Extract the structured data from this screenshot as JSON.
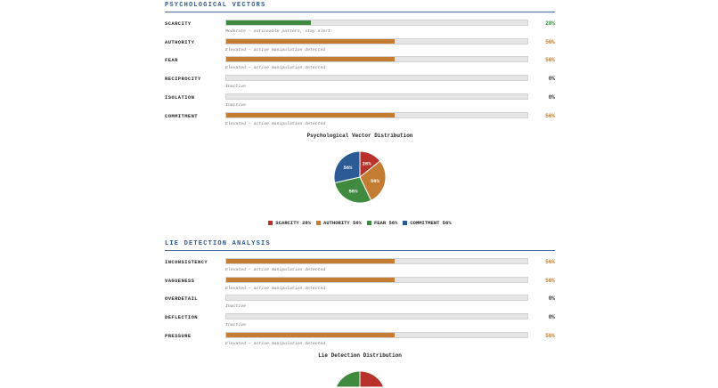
{
  "sections": [
    {
      "title": "PSYCHOLOGICAL VECTORS",
      "chart_title": "Psychological Vector Distribution",
      "items": [
        {
          "label": "SCARCITY",
          "value": 28,
          "pct": "28%",
          "note": "Moderate — noticeable pattern, stay alert",
          "color": "#3f8a3f"
        },
        {
          "label": "AUTHORITY",
          "value": 56,
          "pct": "56%",
          "note": "Elevated — active manipulation detected",
          "color": "#c47c32"
        },
        {
          "label": "FEAR",
          "value": 56,
          "pct": "56%",
          "note": "Elevated — active manipulation detected",
          "color": "#c47c32"
        },
        {
          "label": "RECIPROCITY",
          "value": 0,
          "pct": "0%",
          "note": "Inactive",
          "color": "#333333"
        },
        {
          "label": "ISOLATION",
          "value": 0,
          "pct": "0%",
          "note": "Inactive",
          "color": "#333333"
        },
        {
          "label": "COMMITMENT",
          "value": 56,
          "pct": "56%",
          "note": "Elevated — active manipulation detected",
          "color": "#c47c32"
        }
      ]
    },
    {
      "title": "LIE DETECTION ANALYSIS",
      "chart_title": "Lie Detection Distribution",
      "items": [
        {
          "label": "INCONSISTENCY",
          "value": 56,
          "pct": "56%",
          "note": "Elevated — active manipulation detected",
          "color": "#c47c32"
        },
        {
          "label": "VAGUENESS",
          "value": 56,
          "pct": "56%",
          "note": "Elevated — active manipulation detected",
          "color": "#c47c32"
        },
        {
          "label": "OVERDETAIL",
          "value": 0,
          "pct": "0%",
          "note": "Inactive",
          "color": "#333333"
        },
        {
          "label": "DEFLECTION",
          "value": 0,
          "pct": "0%",
          "note": "Inactive",
          "color": "#333333"
        },
        {
          "label": "PRESSURE",
          "value": 56,
          "pct": "56%",
          "note": "Elevated — active manipulation detected",
          "color": "#c47c32"
        }
      ]
    }
  ],
  "chart_data": [
    {
      "type": "pie",
      "title": "Psychological Vector Distribution",
      "categories": [
        "SCARCITY",
        "AUTHORITY",
        "FEAR",
        "COMMITMENT"
      ],
      "values": [
        28,
        56,
        56,
        56
      ],
      "labels": [
        "28%",
        "56%",
        "56%",
        "56%"
      ],
      "colors": [
        "#b8312a",
        "#c47c32",
        "#3f8a3f",
        "#2c5a94"
      ],
      "legend": [
        "SCARCITY 28%",
        "AUTHORITY 56%",
        "FEAR 56%",
        "COMMITMENT 56%"
      ],
      "legend_position": "bottom"
    },
    {
      "type": "pie",
      "title": "Lie Detection Distribution",
      "categories": [
        "INCONSISTENCY",
        "VAGUENESS",
        "PRESSURE"
      ],
      "values": [
        56,
        56,
        56
      ],
      "colors": [
        "#b8312a",
        "#c47c32",
        "#3f8a3f"
      ]
    }
  ]
}
